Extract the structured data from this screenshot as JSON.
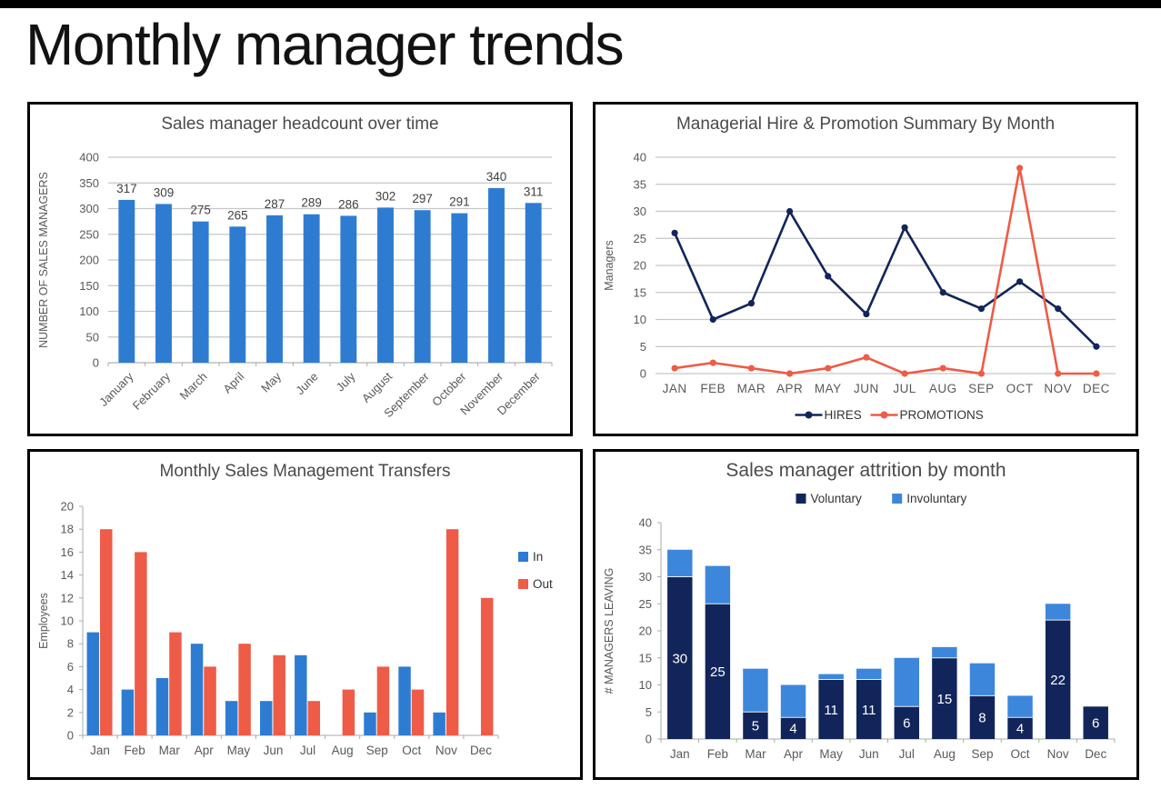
{
  "page": {
    "title": "Monthly manager trends"
  },
  "colors": {
    "blue": "#2E7CD2",
    "coral": "#EE5B47",
    "navy": "#12255A",
    "light_blue": "#3C87DB",
    "grid": "#C6C6C6",
    "axis_line": "#ABABAB",
    "axis_text": "#595959",
    "chart_title": "#4A4A4A",
    "value_label": "#404040",
    "legend_text": "#333333",
    "stack_label": "#FFFFFF"
  },
  "chart_data": [
    {
      "id": "headcount",
      "type": "bar",
      "title": "Sales manager headcount over time",
      "ylabel": "NUMBER OF SALES MANAGERS",
      "xlabel": "",
      "categories": [
        "January",
        "February",
        "March",
        "April",
        "May",
        "June",
        "July",
        "August",
        "September",
        "October",
        "November",
        "December"
      ],
      "values": [
        317,
        309,
        275,
        265,
        287,
        289,
        286,
        302,
        297,
        291,
        340,
        311
      ],
      "ylim": [
        0,
        400
      ],
      "ytick_step": 50,
      "bar_color": "blue",
      "grid": true,
      "value_labels": true,
      "x_label_rotation": -45
    },
    {
      "id": "hires_promotions",
      "type": "line",
      "title": "Managerial Hire & Promotion Summary By Month",
      "ylabel": "Managers",
      "xlabel": "",
      "categories": [
        "JAN",
        "FEB",
        "MAR",
        "APR",
        "MAY",
        "JUN",
        "JUL",
        "AUG",
        "SEP",
        "OCT",
        "NOV",
        "DEC"
      ],
      "series": [
        {
          "name": "HIRES",
          "color": "navy",
          "values": [
            26,
            10,
            13,
            30,
            18,
            11,
            27,
            15,
            12,
            17,
            12,
            5
          ]
        },
        {
          "name": "PROMOTIONS",
          "color": "coral",
          "values": [
            1,
            2,
            1,
            0,
            1,
            3,
            0,
            1,
            0,
            38,
            0,
            0
          ]
        }
      ],
      "ylim": [
        0,
        40
      ],
      "ytick_step": 5,
      "grid": true,
      "legend_position": "bottom"
    },
    {
      "id": "transfers",
      "type": "grouped-bar",
      "title": "Monthly Sales Management Transfers",
      "ylabel": "Employees",
      "xlabel": "",
      "categories": [
        "Jan",
        "Feb",
        "Mar",
        "Apr",
        "May",
        "Jun",
        "Jul",
        "Aug",
        "Sep",
        "Oct",
        "Nov",
        "Dec"
      ],
      "series": [
        {
          "name": "In",
          "color": "blue",
          "values": [
            9,
            4,
            5,
            8,
            3,
            3,
            7,
            0,
            2,
            6,
            2,
            0
          ]
        },
        {
          "name": "Out",
          "color": "coral",
          "values": [
            18,
            16,
            9,
            6,
            8,
            7,
            3,
            4,
            6,
            4,
            18,
            12
          ]
        }
      ],
      "ylim": [
        0,
        20
      ],
      "ytick_step": 2,
      "grid": false,
      "legend_position": "right"
    },
    {
      "id": "attrition",
      "type": "stacked-bar",
      "title": "Sales manager attrition by month",
      "ylabel": "# MANAGERS LEAVING",
      "xlabel": "",
      "categories": [
        "Jan",
        "Feb",
        "Mar",
        "Apr",
        "May",
        "Jun",
        "Jul",
        "Aug",
        "Sep",
        "Oct",
        "Nov",
        "Dec"
      ],
      "series": [
        {
          "name": "Voluntary",
          "color": "navy",
          "values": [
            30,
            25,
            5,
            4,
            11,
            11,
            6,
            15,
            8,
            4,
            22,
            6
          ],
          "segment_labels": true
        },
        {
          "name": "Involuntary",
          "color": "light_blue",
          "values": [
            5,
            7,
            8,
            6,
            1,
            2,
            9,
            2,
            6,
            4,
            3,
            0
          ]
        }
      ],
      "totals": [
        35,
        32,
        13,
        10,
        12,
        13,
        15,
        17,
        14,
        8,
        25,
        6
      ],
      "ylim": [
        0,
        40
      ],
      "ytick_step": 5,
      "grid": false,
      "legend_position": "top"
    }
  ]
}
